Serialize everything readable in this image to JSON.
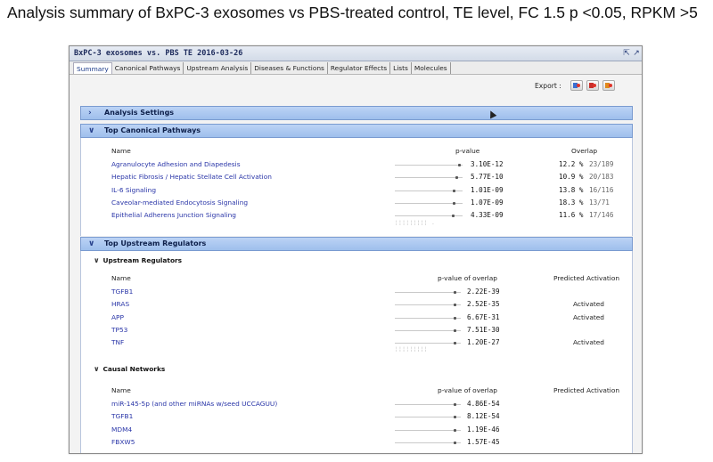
{
  "slide_title": "Analysis summary of BxPC-3 exosomes vs PBS-treated control, TE level, FC 1.5 p <0.05, RPKM >5",
  "window": {
    "title": "BxPC-3 exosomes vs. PBS TE 2016-03-26",
    "tabs": [
      "Summary",
      "Canonical Pathways",
      "Upstream Analysis",
      "Diseases & Functions",
      "Regulator Effects",
      "Lists",
      "Molecules"
    ],
    "active_tab": "Summary"
  },
  "export": {
    "label": "Export :"
  },
  "analysis_settings": {
    "label": "Analysis Settings"
  },
  "top_canonical_pathways": {
    "label": "Top Canonical Pathways",
    "columns": {
      "name": "Name",
      "pvalue": "p-value",
      "overlap": "Overlap"
    },
    "rows": [
      {
        "name": "Agranulocyte Adhesion and Diapedesis",
        "pvalue": "3.10E-12",
        "overlap_pct": "12.2 %",
        "overlap_count": "23/189",
        "bar": 0.93
      },
      {
        "name": "Hepatic Fibrosis / Hepatic Stellate Cell Activation",
        "pvalue": "5.77E-10",
        "overlap_pct": "10.9 %",
        "overlap_count": "20/183",
        "bar": 0.9
      },
      {
        "name": "IL-6 Signaling",
        "pvalue": "1.01E-09",
        "overlap_pct": "13.8 %",
        "overlap_count": "16/116",
        "bar": 0.86
      },
      {
        "name": "Caveolar-mediated Endocytosis Signaling",
        "pvalue": "1.07E-09",
        "overlap_pct": "18.3 %",
        "overlap_count": "13/71",
        "bar": 0.86
      },
      {
        "name": "Epithelial Adherens Junction Signaling",
        "pvalue": "4.33E-09",
        "overlap_pct": "11.6 %",
        "overlap_count": "17/146",
        "bar": 0.84
      }
    ]
  },
  "top_upstream_regulators": {
    "label": "Top Upstream Regulators",
    "upstream": {
      "label": "Upstream Regulators",
      "columns": {
        "name": "Name",
        "pvalue": "p-value of overlap",
        "activation": "Predicted Activation"
      },
      "rows": [
        {
          "name": "TGFB1",
          "pvalue": "2.22E-39",
          "activation": ""
        },
        {
          "name": "HRAS",
          "pvalue": "2.52E-35",
          "activation": "Activated"
        },
        {
          "name": "APP",
          "pvalue": "6.67E-31",
          "activation": "Activated"
        },
        {
          "name": "TP53",
          "pvalue": "7.51E-30",
          "activation": ""
        },
        {
          "name": "TNF",
          "pvalue": "1.20E-27",
          "activation": "Activated"
        }
      ]
    },
    "causal": {
      "label": "Causal Networks",
      "columns": {
        "name": "Name",
        "pvalue": "p-value of overlap",
        "activation": "Predicted Activation"
      },
      "rows": [
        {
          "name": "miR-145-5p (and other miRNAs w/seed UCCAGUU)",
          "pvalue": "4.86E-54",
          "activation": ""
        },
        {
          "name": "TGFB1",
          "pvalue": "8.12E-54",
          "activation": ""
        },
        {
          "name": "MDM4",
          "pvalue": "1.19E-46",
          "activation": ""
        },
        {
          "name": "FBXW5",
          "pvalue": "1.57E-45",
          "activation": ""
        }
      ]
    }
  }
}
